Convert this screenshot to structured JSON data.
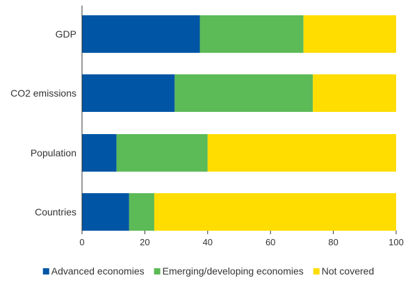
{
  "chart_data": {
    "type": "bar",
    "orientation": "horizontal",
    "stacked": true,
    "categories": [
      "GDP",
      "CO2 emissions",
      "Population",
      "Countries"
    ],
    "series": [
      {
        "name": "Advanced economies",
        "color": "#0055a5",
        "values": [
          37.5,
          29.5,
          11,
          15
        ]
      },
      {
        "name": "Emerging/developing economies",
        "color": "#5cba57",
        "values": [
          33,
          44,
          29,
          8
        ]
      },
      {
        "name": "Not covered",
        "color": "#ffdd00",
        "values": [
          29.5,
          26.5,
          60,
          77
        ]
      }
    ],
    "x_ticks": [
      "0",
      "20",
      "40",
      "60",
      "80",
      "100"
    ],
    "xlim": [
      0,
      100
    ],
    "title": "",
    "xlabel": "",
    "ylabel": "",
    "grid": false,
    "legend_position": "bottom"
  }
}
